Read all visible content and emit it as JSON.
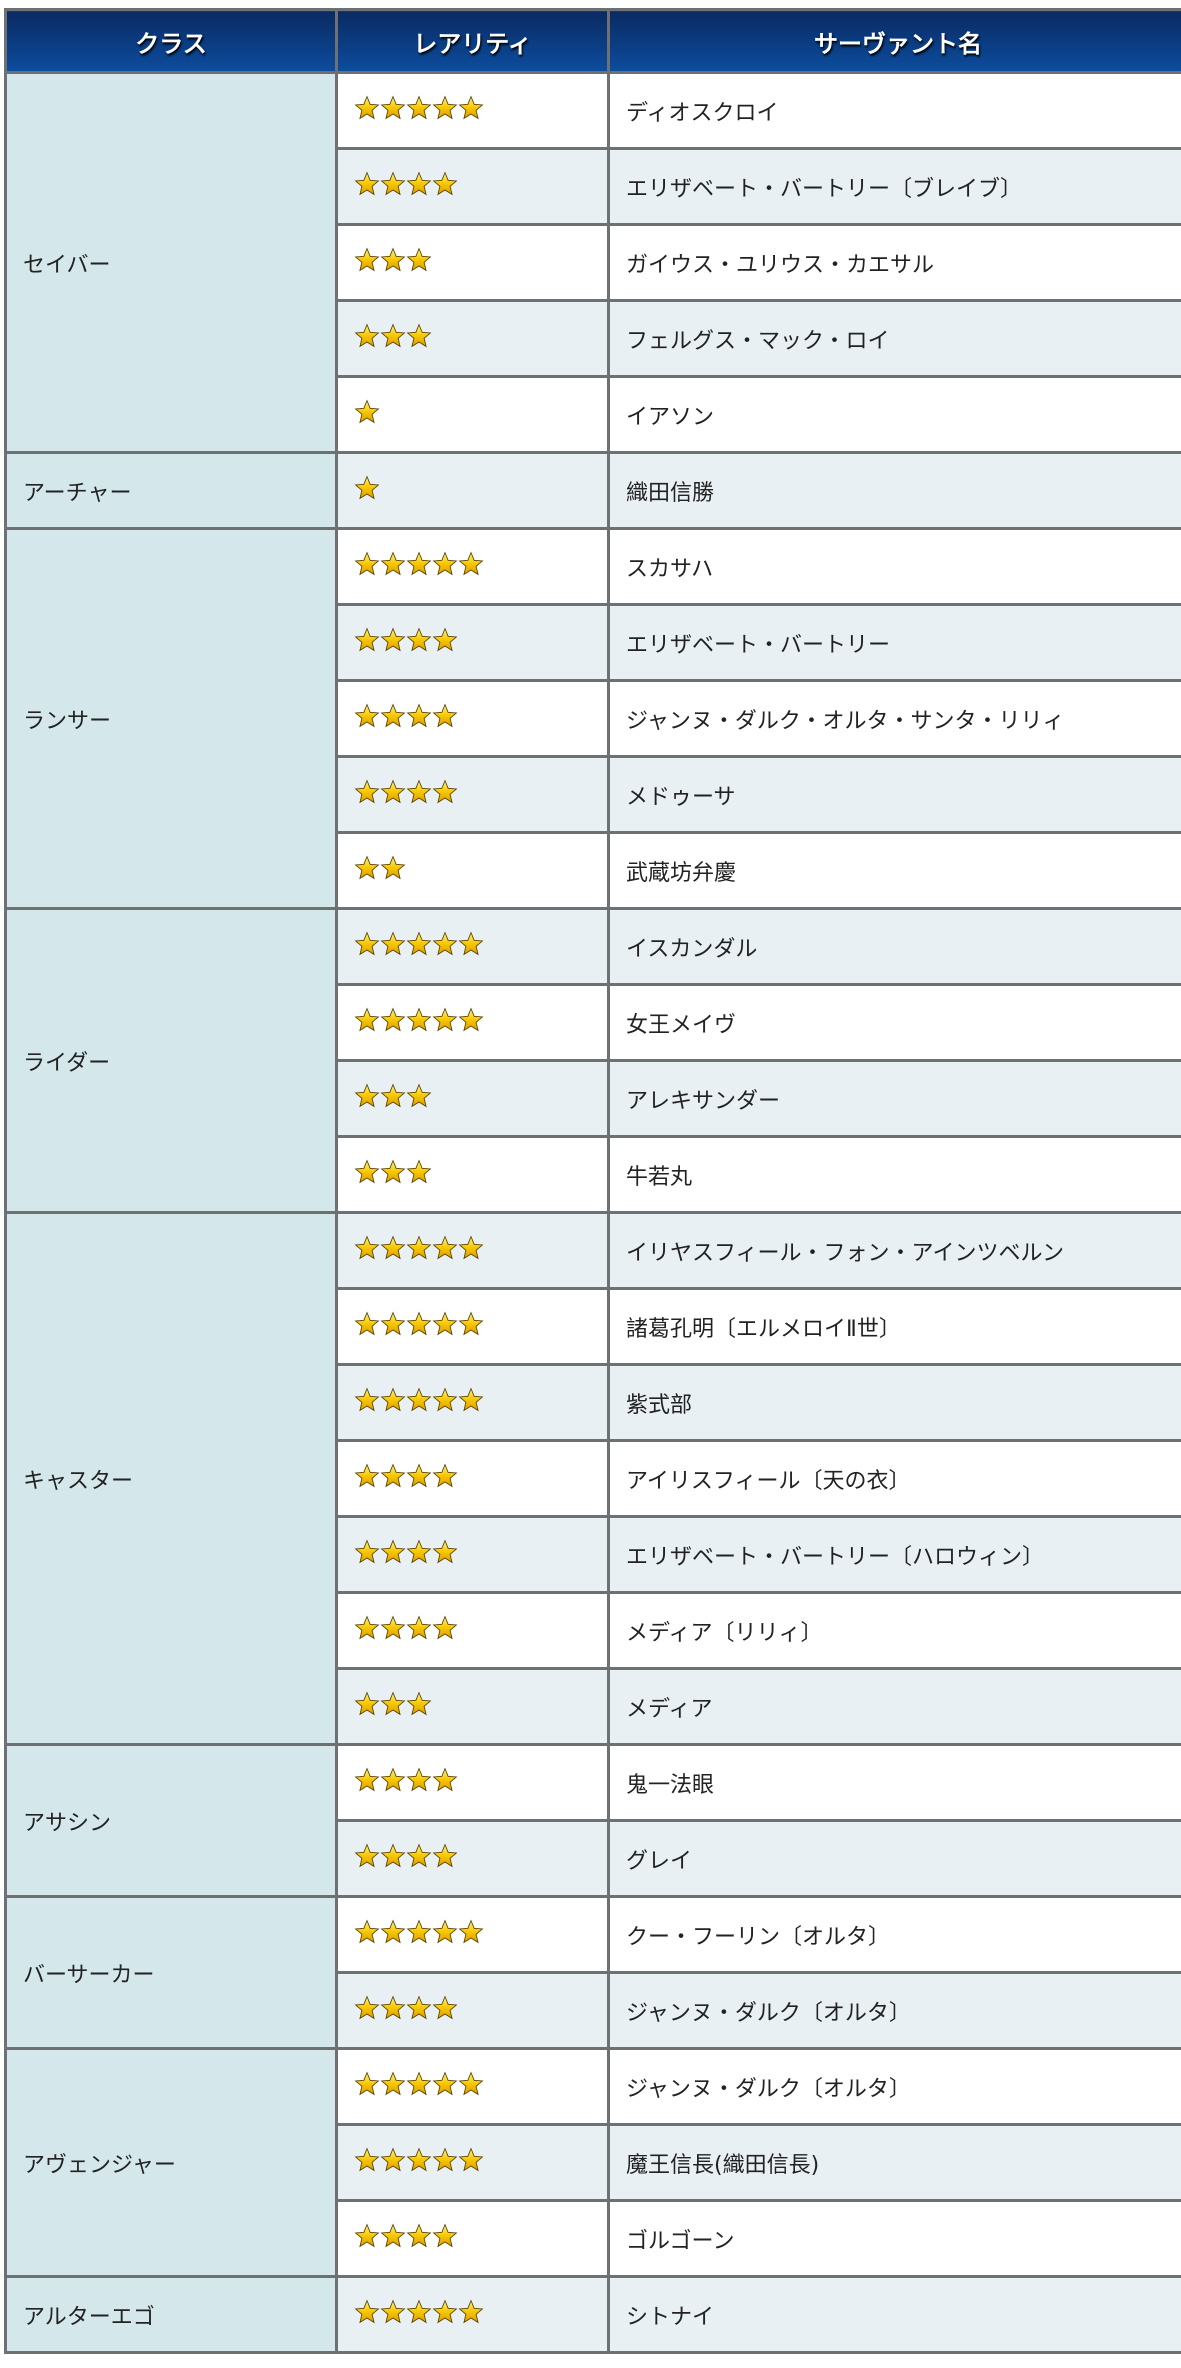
{
  "header": {
    "class": "クラス",
    "rarity": "レアリティ",
    "name": "サーヴァント名"
  },
  "colors": {
    "header": "#0b3f86",
    "class_bg": "#d4e8ec",
    "alt_row": "#e9f0f3",
    "star": "#f7c800"
  },
  "groups": [
    {
      "class": "セイバー",
      "rows": [
        {
          "rarity": 5,
          "name": "ディオスクロイ"
        },
        {
          "rarity": 4,
          "name": "エリザベート・バートリー〔ブレイブ〕"
        },
        {
          "rarity": 3,
          "name": "ガイウス・ユリウス・カエサル"
        },
        {
          "rarity": 3,
          "name": "フェルグス・マック・ロイ"
        },
        {
          "rarity": 1,
          "name": "イアソン"
        }
      ]
    },
    {
      "class": "アーチャー",
      "rows": [
        {
          "rarity": 1,
          "name": "織田信勝"
        }
      ]
    },
    {
      "class": "ランサー",
      "rows": [
        {
          "rarity": 5,
          "name": "スカサハ"
        },
        {
          "rarity": 4,
          "name": "エリザベート・バートリー"
        },
        {
          "rarity": 4,
          "name": "ジャンヌ・ダルク・オルタ・サンタ・リリィ"
        },
        {
          "rarity": 4,
          "name": "メドゥーサ"
        },
        {
          "rarity": 2,
          "name": "武蔵坊弁慶"
        }
      ]
    },
    {
      "class": "ライダー",
      "rows": [
        {
          "rarity": 5,
          "name": "イスカンダル"
        },
        {
          "rarity": 5,
          "name": "女王メイヴ"
        },
        {
          "rarity": 3,
          "name": "アレキサンダー"
        },
        {
          "rarity": 3,
          "name": "牛若丸"
        }
      ]
    },
    {
      "class": "キャスター",
      "rows": [
        {
          "rarity": 5,
          "name": "イリヤスフィール・フォン・アインツベルン"
        },
        {
          "rarity": 5,
          "name": "諸葛孔明〔エルメロイⅡ世〕"
        },
        {
          "rarity": 5,
          "name": "紫式部"
        },
        {
          "rarity": 4,
          "name": "アイリスフィール〔天の衣〕"
        },
        {
          "rarity": 4,
          "name": "エリザベート・バートリー〔ハロウィン〕"
        },
        {
          "rarity": 4,
          "name": "メディア〔リリィ〕"
        },
        {
          "rarity": 3,
          "name": "メディア"
        }
      ]
    },
    {
      "class": "アサシン",
      "rows": [
        {
          "rarity": 4,
          "name": "鬼一法眼"
        },
        {
          "rarity": 4,
          "name": "グレイ"
        }
      ]
    },
    {
      "class": "バーサーカー",
      "rows": [
        {
          "rarity": 5,
          "name": "クー・フーリン〔オルタ〕"
        },
        {
          "rarity": 4,
          "name": "ジャンヌ・ダルク〔オルタ〕"
        }
      ]
    },
    {
      "class": "アヴェンジャー",
      "rows": [
        {
          "rarity": 5,
          "name": "ジャンヌ・ダルク〔オルタ〕"
        },
        {
          "rarity": 5,
          "name": "魔王信長(織田信長)"
        },
        {
          "rarity": 4,
          "name": "ゴルゴーン"
        }
      ]
    },
    {
      "class": "アルターエゴ",
      "rows": [
        {
          "rarity": 5,
          "name": "シトナイ"
        }
      ]
    }
  ]
}
